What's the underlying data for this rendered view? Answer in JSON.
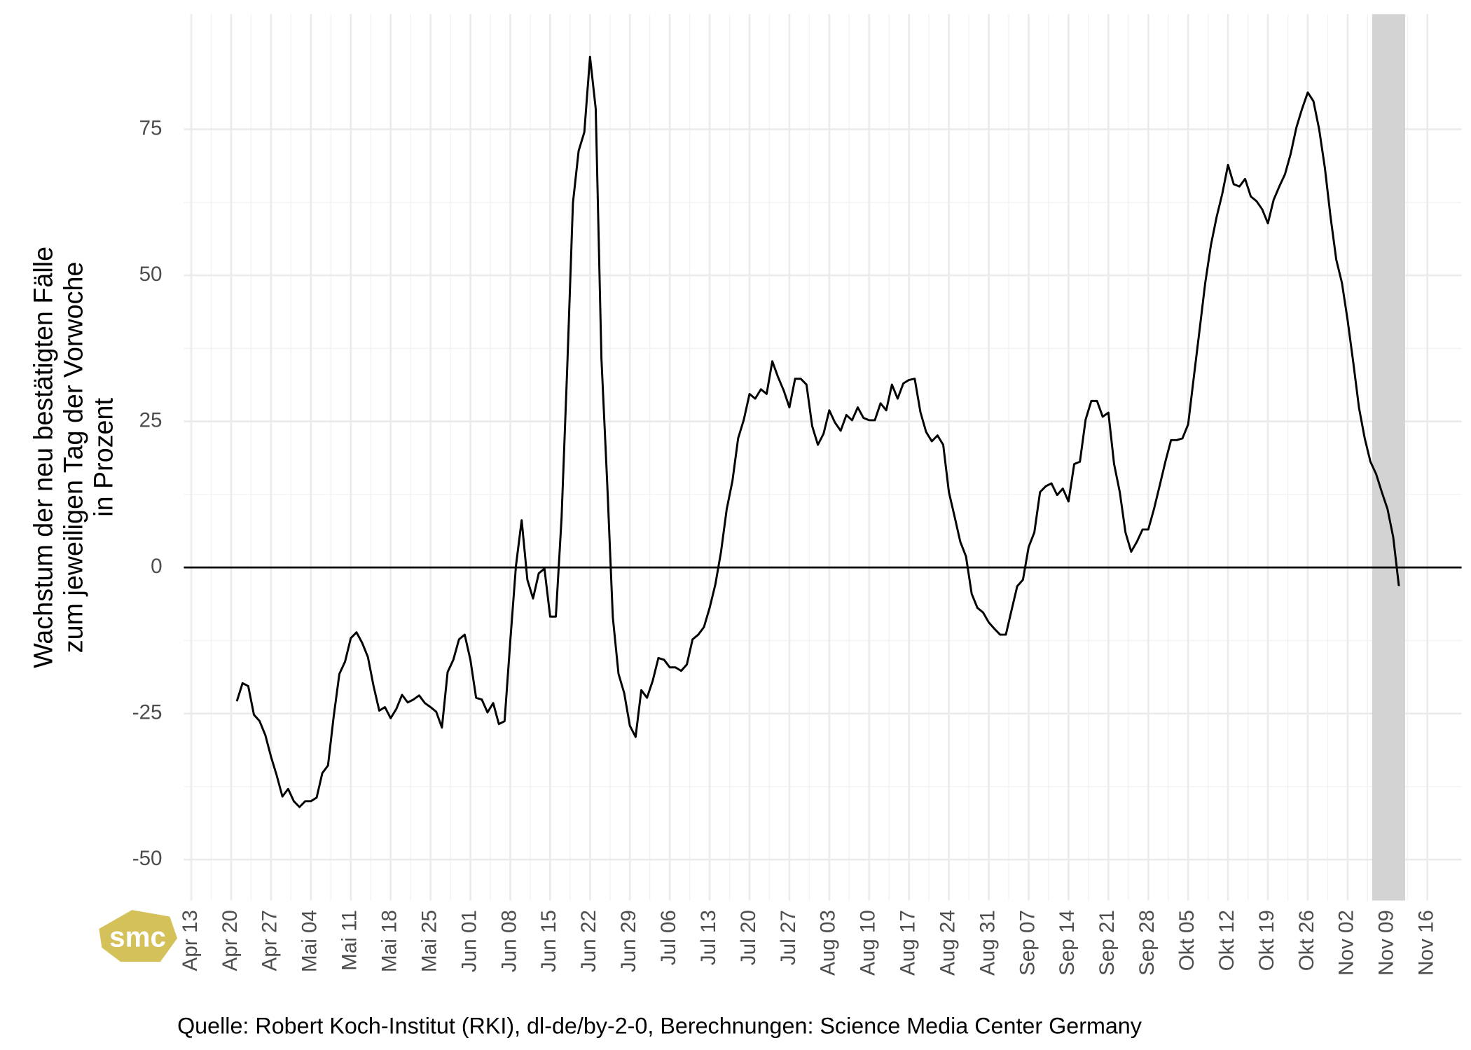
{
  "chart_data": {
    "type": "line",
    "y_label_lines": [
      "Wachstum der neu bestätigten Fälle",
      "zum jeweiligen Tag der Vorwoche",
      "in Prozent"
    ],
    "caption": "Quelle: Robert Koch-Institut (RKI), dl-de/by-2-0, Berechnungen: Science Media Center Germany",
    "logo": "smc",
    "color": "#000000",
    "grid": true,
    "reference_line": 0,
    "highlight_range": [
      207.3,
      213.1
    ],
    "xlim": [
      -1.3,
      223
    ],
    "ylim": [
      -57,
      94.7
    ],
    "yticks": [
      -50,
      -25,
      0,
      25,
      50,
      75
    ],
    "xticks": [
      {
        "value": 0,
        "label": "Apr 13"
      },
      {
        "value": 7,
        "label": "Apr 20"
      },
      {
        "value": 14,
        "label": "Apr 27"
      },
      {
        "value": 21,
        "label": "Mai 04"
      },
      {
        "value": 28,
        "label": "Mai 11"
      },
      {
        "value": 35,
        "label": "Mai 18"
      },
      {
        "value": 42,
        "label": "Mai 25"
      },
      {
        "value": 49,
        "label": "Jun 01"
      },
      {
        "value": 56,
        "label": "Jun 08"
      },
      {
        "value": 63,
        "label": "Jun 15"
      },
      {
        "value": 70,
        "label": "Jun 22"
      },
      {
        "value": 77,
        "label": "Jun 29"
      },
      {
        "value": 84,
        "label": "Jul 06"
      },
      {
        "value": 91,
        "label": "Jul 13"
      },
      {
        "value": 98,
        "label": "Jul 20"
      },
      {
        "value": 105,
        "label": "Jul 27"
      },
      {
        "value": 112,
        "label": "Aug 03"
      },
      {
        "value": 119,
        "label": "Aug 10"
      },
      {
        "value": 126,
        "label": "Aug 17"
      },
      {
        "value": 133,
        "label": "Aug 24"
      },
      {
        "value": 140,
        "label": "Aug 31"
      },
      {
        "value": 147,
        "label": "Sep 07"
      },
      {
        "value": 154,
        "label": "Sep 14"
      },
      {
        "value": 161,
        "label": "Sep 21"
      },
      {
        "value": 168,
        "label": "Sep 28"
      },
      {
        "value": 175,
        "label": "Okt 05"
      },
      {
        "value": 182,
        "label": "Okt 12"
      },
      {
        "value": 189,
        "label": "Okt 19"
      },
      {
        "value": 196,
        "label": "Okt 26"
      },
      {
        "value": 203,
        "label": "Nov 02"
      },
      {
        "value": 210,
        "label": "Nov 09"
      },
      {
        "value": 217,
        "label": "Nov 16"
      }
    ],
    "x": [
      8,
      9,
      10,
      11,
      12,
      13,
      14,
      15,
      16,
      17,
      18,
      19,
      20,
      21,
      22,
      23,
      24,
      25,
      26,
      27,
      28,
      29,
      30,
      31,
      32,
      33,
      34,
      35,
      36,
      37,
      38,
      39,
      40,
      41,
      42,
      43,
      44,
      45,
      46,
      47,
      48,
      49,
      50,
      51,
      52,
      53,
      54,
      55,
      56,
      57,
      58,
      59,
      60,
      61,
      62,
      63,
      64,
      65,
      66,
      67,
      68,
      69,
      70,
      71,
      72,
      73,
      74,
      75,
      76,
      77,
      78,
      79,
      80,
      81,
      82,
      83,
      84,
      85,
      86,
      87,
      88,
      89,
      90,
      91,
      92,
      93,
      94,
      95,
      96,
      97,
      98,
      99,
      100,
      101,
      102,
      103,
      104,
      105,
      106,
      107,
      108,
      109,
      110,
      111,
      112,
      113,
      114,
      115,
      116,
      117,
      118,
      119,
      120,
      121,
      122,
      123,
      124,
      125,
      126,
      127,
      128,
      129,
      130,
      131,
      132,
      133,
      134,
      135,
      136,
      137,
      138,
      139,
      140,
      141,
      142,
      143,
      144,
      145,
      146,
      147,
      148,
      149,
      150,
      151,
      152,
      153,
      154,
      155,
      156,
      157,
      158,
      159,
      160,
      161,
      162,
      163,
      164,
      165,
      166,
      167,
      168,
      169,
      170,
      171,
      172,
      173,
      174,
      175,
      176,
      177,
      178,
      179,
      180,
      181,
      182,
      183,
      184,
      185,
      186,
      187,
      188,
      189,
      190,
      191,
      192,
      193,
      194,
      195,
      196,
      197,
      198,
      199,
      200,
      201,
      202,
      203,
      204,
      205,
      206,
      207,
      208,
      209,
      210,
      211,
      212
    ],
    "values": [
      -22.9,
      -19.8,
      -20.3,
      -25.2,
      -26.3,
      -28.7,
      -32.4,
      -35.6,
      -39.2,
      -37.9,
      -40,
      -41,
      -40,
      -40,
      -39.4,
      -35.2,
      -33.9,
      -25.5,
      -18.2,
      -16.1,
      -12.1,
      -11.1,
      -12.9,
      -15.3,
      -20.3,
      -24.5,
      -23.9,
      -25.8,
      -24.2,
      -21.8,
      -23.1,
      -22.6,
      -21.9,
      -23.2,
      -23.9,
      -24.7,
      -27.4,
      -17.9,
      -15.8,
      -12.3,
      -11.5,
      -15.8,
      -22.3,
      -22.6,
      -24.8,
      -23.2,
      -26.8,
      -26.3,
      -12.6,
      0.3,
      8.1,
      -2.1,
      -5.3,
      -1,
      -0.2,
      -8.4,
      -8.4,
      8.4,
      34.2,
      62.4,
      71.3,
      74.5,
      87.4,
      78.5,
      35.8,
      14.8,
      -8.5,
      -18.2,
      -21.5,
      -27.1,
      -29,
      -21,
      -22.3,
      -19.4,
      -15.5,
      -15.8,
      -17.1,
      -17.1,
      -17.7,
      -16.6,
      -12.3,
      -11.5,
      -10.2,
      -6.9,
      -2.9,
      2.7,
      10,
      14.8,
      22.1,
      25.3,
      29.7,
      28.9,
      30.5,
      29.7,
      35.3,
      32.6,
      30.3,
      27.4,
      32.3,
      32.3,
      31.3,
      24.2,
      21,
      22.9,
      26.9,
      24.8,
      23.4,
      26.1,
      25.2,
      27.4,
      25.6,
      25.2,
      25.2,
      28.1,
      26.9,
      31.3,
      28.9,
      31.5,
      32.1,
      32.3,
      26.6,
      23.2,
      21.6,
      22.6,
      21,
      12.9,
      8.7,
      4.4,
      1.9,
      -4.5,
      -6.9,
      -7.7,
      -9.4,
      -10.5,
      -11.5,
      -11.5,
      -7.3,
      -3.2,
      -2.1,
      3.5,
      6,
      12.9,
      13.9,
      14.4,
      12.4,
      13.5,
      11.3,
      17.7,
      18.1,
      25.3,
      28.5,
      28.5,
      25.8,
      26.5,
      17.7,
      12.9,
      6,
      2.7,
      4.4,
      6.5,
      6.5,
      10,
      14,
      18.1,
      21.8,
      21.8,
      22.1,
      24.5,
      32.6,
      40.6,
      48.7,
      55.2,
      60,
      64,
      68.9,
      65.6,
      65.2,
      66.5,
      63.5,
      62.7,
      61.3,
      58.9,
      62.9,
      65.2,
      67.3,
      70.8,
      75.3,
      78.5,
      81.3,
      79.8,
      75,
      68.4,
      60,
      52.7,
      48.7,
      42.3,
      35,
      27.3,
      22.1,
      18.1,
      16,
      12.9,
      10,
      5.2,
      -3.2
    ]
  }
}
